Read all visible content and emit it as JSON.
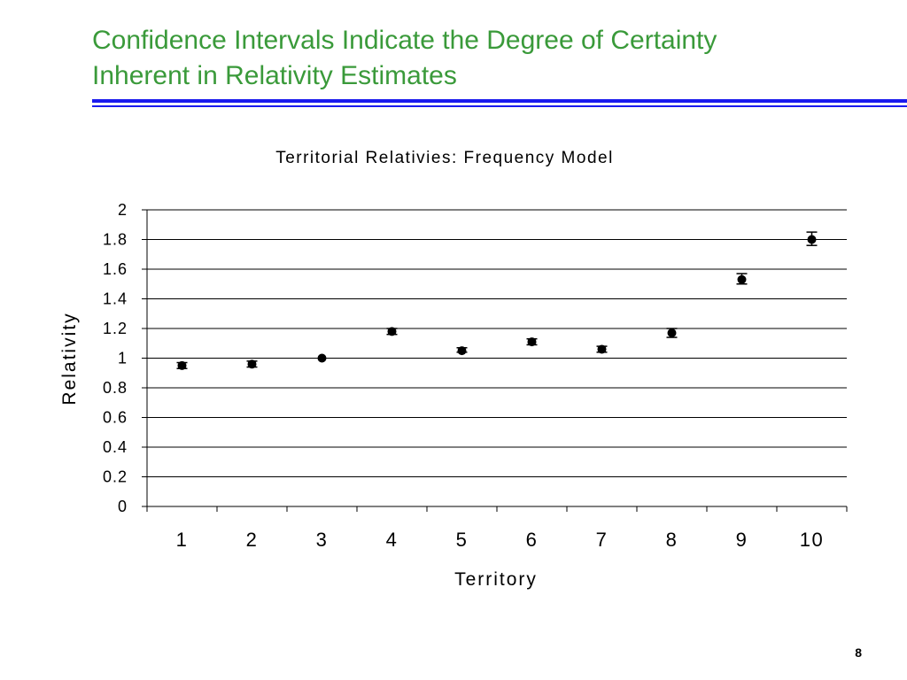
{
  "slide": {
    "title_line1": "Confidence Intervals Indicate the Degree of Certainty",
    "title_line2": "Inherent in Relativity Estimates",
    "page_number": "8"
  },
  "colors": {
    "title": "#3a9a3a",
    "rule": "#1a1aee",
    "marker": "#000000",
    "gridline": "#000000"
  },
  "chart_data": {
    "type": "scatter",
    "title": "Territorial Relativies: Frequency Model",
    "xlabel": "Territory",
    "ylabel": "Relativity",
    "categories": [
      "1",
      "2",
      "3",
      "4",
      "5",
      "6",
      "7",
      "8",
      "9",
      "10"
    ],
    "y_ticks": [
      "0",
      "0.2",
      "0.4",
      "0.6",
      "0.8",
      "1",
      "1.2",
      "1.4",
      "1.6",
      "1.8",
      "2"
    ],
    "ylim": [
      0,
      2
    ],
    "grid": true,
    "legend": "none",
    "series": [
      {
        "values": [
          0.95,
          0.96,
          1.0,
          1.18,
          1.05,
          1.11,
          1.06,
          1.17,
          1.53,
          1.8
        ],
        "lower": [
          0.93,
          0.94,
          1.0,
          1.16,
          1.04,
          1.09,
          1.04,
          1.14,
          1.5,
          1.76
        ],
        "upper": [
          0.97,
          0.98,
          1.0,
          1.2,
          1.07,
          1.13,
          1.08,
          1.2,
          1.57,
          1.85
        ]
      }
    ]
  }
}
